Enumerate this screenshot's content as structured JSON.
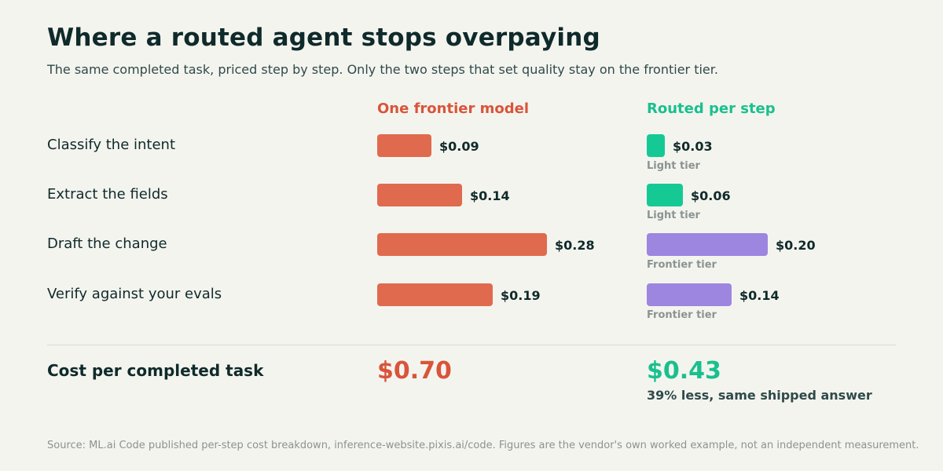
{
  "title": "Where a routed agent stops overpaying",
  "subtitle": "The same completed task, priced step by step. Only the two steps that set quality stay on the frontier tier.",
  "chart_data": {
    "type": "bar",
    "categories": [
      "Classify the intent",
      "Extract the fields",
      "Draft the change",
      "Verify against your evals"
    ],
    "series": [
      {
        "name": "One frontier model",
        "values": [
          0.09,
          0.14,
          0.28,
          0.19
        ],
        "value_labels": [
          "$0.09",
          "$0.14",
          "$0.28",
          "$0.19"
        ]
      },
      {
        "name": "Routed per step",
        "values": [
          0.03,
          0.06,
          0.2,
          0.14
        ],
        "value_labels": [
          "$0.03",
          "$0.06",
          "$0.20",
          "$0.14"
        ],
        "tiers": [
          "Light tier",
          "Light tier",
          "Frontier tier",
          "Frontier tier"
        ]
      }
    ]
  },
  "totals": {
    "label": "Cost per completed task",
    "frontier": "$0.70",
    "routed": "$0.43",
    "saving": "39% less, same shipped answer"
  },
  "colors": {
    "frontier_model": "#e06a4e",
    "light_tier": "#15c995",
    "frontier_tier": "#9c86e0"
  },
  "source": "Source: ML.ai Code published per-step cost breakdown, inference-website.pixis.ai/code. Figures are the vendor's own worked example, not an independent measurement."
}
